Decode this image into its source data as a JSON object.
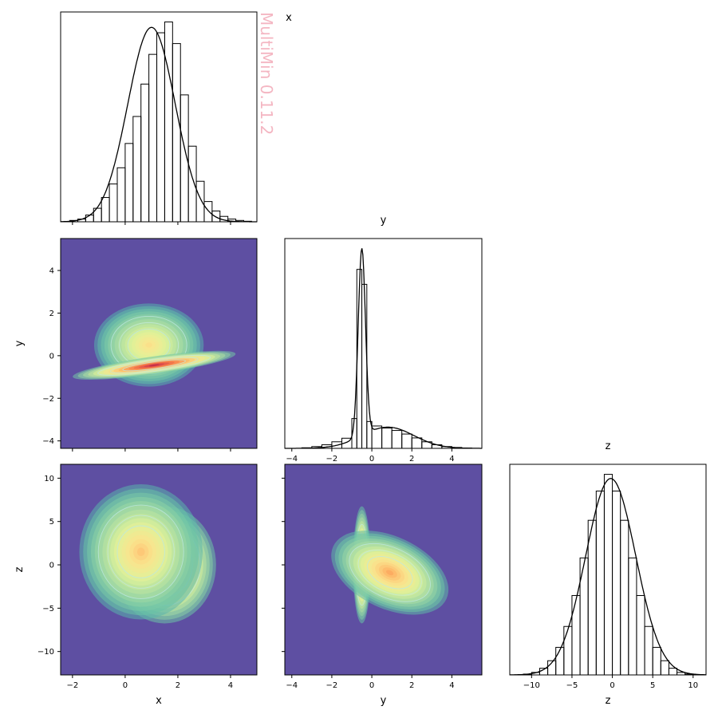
{
  "watermark": "MultiMin 0.11.2",
  "colors": {
    "background": "#5e4fa2",
    "watermark": "#f4b6c2",
    "line": "#000000",
    "contour": "#bfe8e0",
    "colormap": [
      "#5e4fa2",
      "#3288bd",
      "#66c2a5",
      "#abdda4",
      "#e6f598",
      "#fee08b",
      "#fdae61",
      "#f46d43",
      "#d53e4f",
      "#9e0142"
    ]
  },
  "chart_data": [
    {
      "type": "histogram",
      "panel": "x-marginal",
      "title": "x",
      "xlim": [
        -2.45,
        5.0
      ],
      "xticks": [
        -2,
        0,
        2,
        4
      ],
      "bin_edges": [
        -2.1,
        -1.8,
        -1.5,
        -1.2,
        -0.9,
        -0.6,
        -0.3,
        0.0,
        0.3,
        0.6,
        0.9,
        1.2,
        1.5,
        1.8,
        2.1,
        2.4,
        2.7,
        3.0,
        3.3,
        3.6,
        3.9,
        4.2,
        4.5,
        4.8
      ],
      "counts": [
        0.005,
        0.01,
        0.025,
        0.05,
        0.09,
        0.14,
        0.2,
        0.29,
        0.39,
        0.51,
        0.62,
        0.7,
        0.74,
        0.66,
        0.47,
        0.28,
        0.15,
        0.075,
        0.04,
        0.02,
        0.01,
        0.005,
        0.002
      ],
      "pdf": {
        "mean": 1.0,
        "std": 0.9,
        "peak": 0.72
      }
    },
    {
      "type": "histogram",
      "panel": "y-marginal",
      "title": "y",
      "xlim": [
        -4.35,
        5.5
      ],
      "xticks": [
        -4,
        -2,
        0,
        2,
        4
      ],
      "bin_edges": [
        -3.5,
        -3.0,
        -2.5,
        -2.0,
        -1.5,
        -1.0,
        -0.75,
        -0.5,
        -0.25,
        0.0,
        0.5,
        1.0,
        1.5,
        2.0,
        2.5,
        3.0,
        3.5,
        4.0,
        4.5,
        5.0
      ],
      "counts": [
        0.002,
        0.006,
        0.012,
        0.022,
        0.034,
        0.1,
        0.6,
        0.55,
        0.09,
        0.075,
        0.068,
        0.06,
        0.048,
        0.035,
        0.022,
        0.012,
        0.006,
        0.003,
        0.001
      ],
      "pdf": {
        "components": [
          {
            "weight": 0.55,
            "mean": -0.5,
            "std": 0.18
          },
          {
            "weight": 0.45,
            "mean": 0.8,
            "std": 1.3
          }
        ],
        "peak": 0.67
      }
    },
    {
      "type": "histogram",
      "panel": "z-marginal",
      "title": "z",
      "xlabel": "z",
      "xlim": [
        -12.7,
        11.6
      ],
      "xticks": [
        -10,
        -5,
        0,
        5,
        10
      ],
      "bin_edges": [
        -11,
        -10,
        -9,
        -8,
        -7,
        -6,
        -5,
        -4,
        -3,
        -2,
        -1,
        0,
        1,
        2,
        3,
        4,
        5,
        6,
        7,
        8,
        9,
        10,
        11
      ],
      "counts": [
        0.001,
        0.003,
        0.008,
        0.017,
        0.033,
        0.058,
        0.095,
        0.14,
        0.185,
        0.22,
        0.24,
        0.22,
        0.185,
        0.14,
        0.095,
        0.058,
        0.033,
        0.017,
        0.008,
        0.003,
        0.001,
        0.0
      ],
      "pdf": {
        "mean": -0.2,
        "std": 3.1,
        "peak": 0.235
      }
    },
    {
      "type": "density",
      "panel": "x-vs-y",
      "xlabel": "",
      "ylabel": "y",
      "xlim": [
        -2.45,
        5.0
      ],
      "ylim": [
        -4.35,
        5.5
      ],
      "yticks": [
        -4,
        -2,
        0,
        2,
        4
      ],
      "components": [
        {
          "mean_x": 0.9,
          "mean_y": 0.5,
          "sx": 0.8,
          "sy": 0.75,
          "rotation_deg": 0,
          "weight": 0.35
        },
        {
          "mean_x": 1.1,
          "mean_y": -0.45,
          "sx": 1.2,
          "sy": 0.16,
          "rotation_deg": 8,
          "weight": 0.65
        }
      ]
    },
    {
      "type": "density",
      "panel": "x-vs-z",
      "xlabel": "x",
      "ylabel": "z",
      "xlim": [
        -2.45,
        5.0
      ],
      "ylim": [
        -12.7,
        11.6
      ],
      "xticks": [
        -2,
        0,
        2,
        4
      ],
      "yticks": [
        -10,
        -5,
        0,
        5,
        10
      ],
      "components": [
        {
          "mean_x": 1.5,
          "mean_y": 0.0,
          "sx": 0.75,
          "sy": 2.6,
          "rotation_deg": 0,
          "weight": 0.6
        },
        {
          "mean_x": 0.6,
          "mean_y": 1.5,
          "sx": 0.9,
          "sy": 3.0,
          "rotation_deg": 0,
          "weight": 0.4
        }
      ]
    },
    {
      "type": "density",
      "panel": "y-vs-z",
      "xlabel": "y",
      "ylabel": "",
      "xlim": [
        -4.35,
        5.5
      ],
      "ylim": [
        -12.7,
        11.6
      ],
      "xticks": [
        -4,
        -2,
        0,
        2,
        4
      ],
      "components": [
        {
          "mean_x": -0.5,
          "mean_y": 0.0,
          "sx": 0.17,
          "sy": 2.6,
          "rotation_deg": 0,
          "weight": 0.55
        },
        {
          "mean_x": 0.9,
          "mean_y": -0.9,
          "sx": 1.2,
          "sy": 1.6,
          "rotation_deg": -25,
          "weight": 0.45
        }
      ]
    }
  ]
}
